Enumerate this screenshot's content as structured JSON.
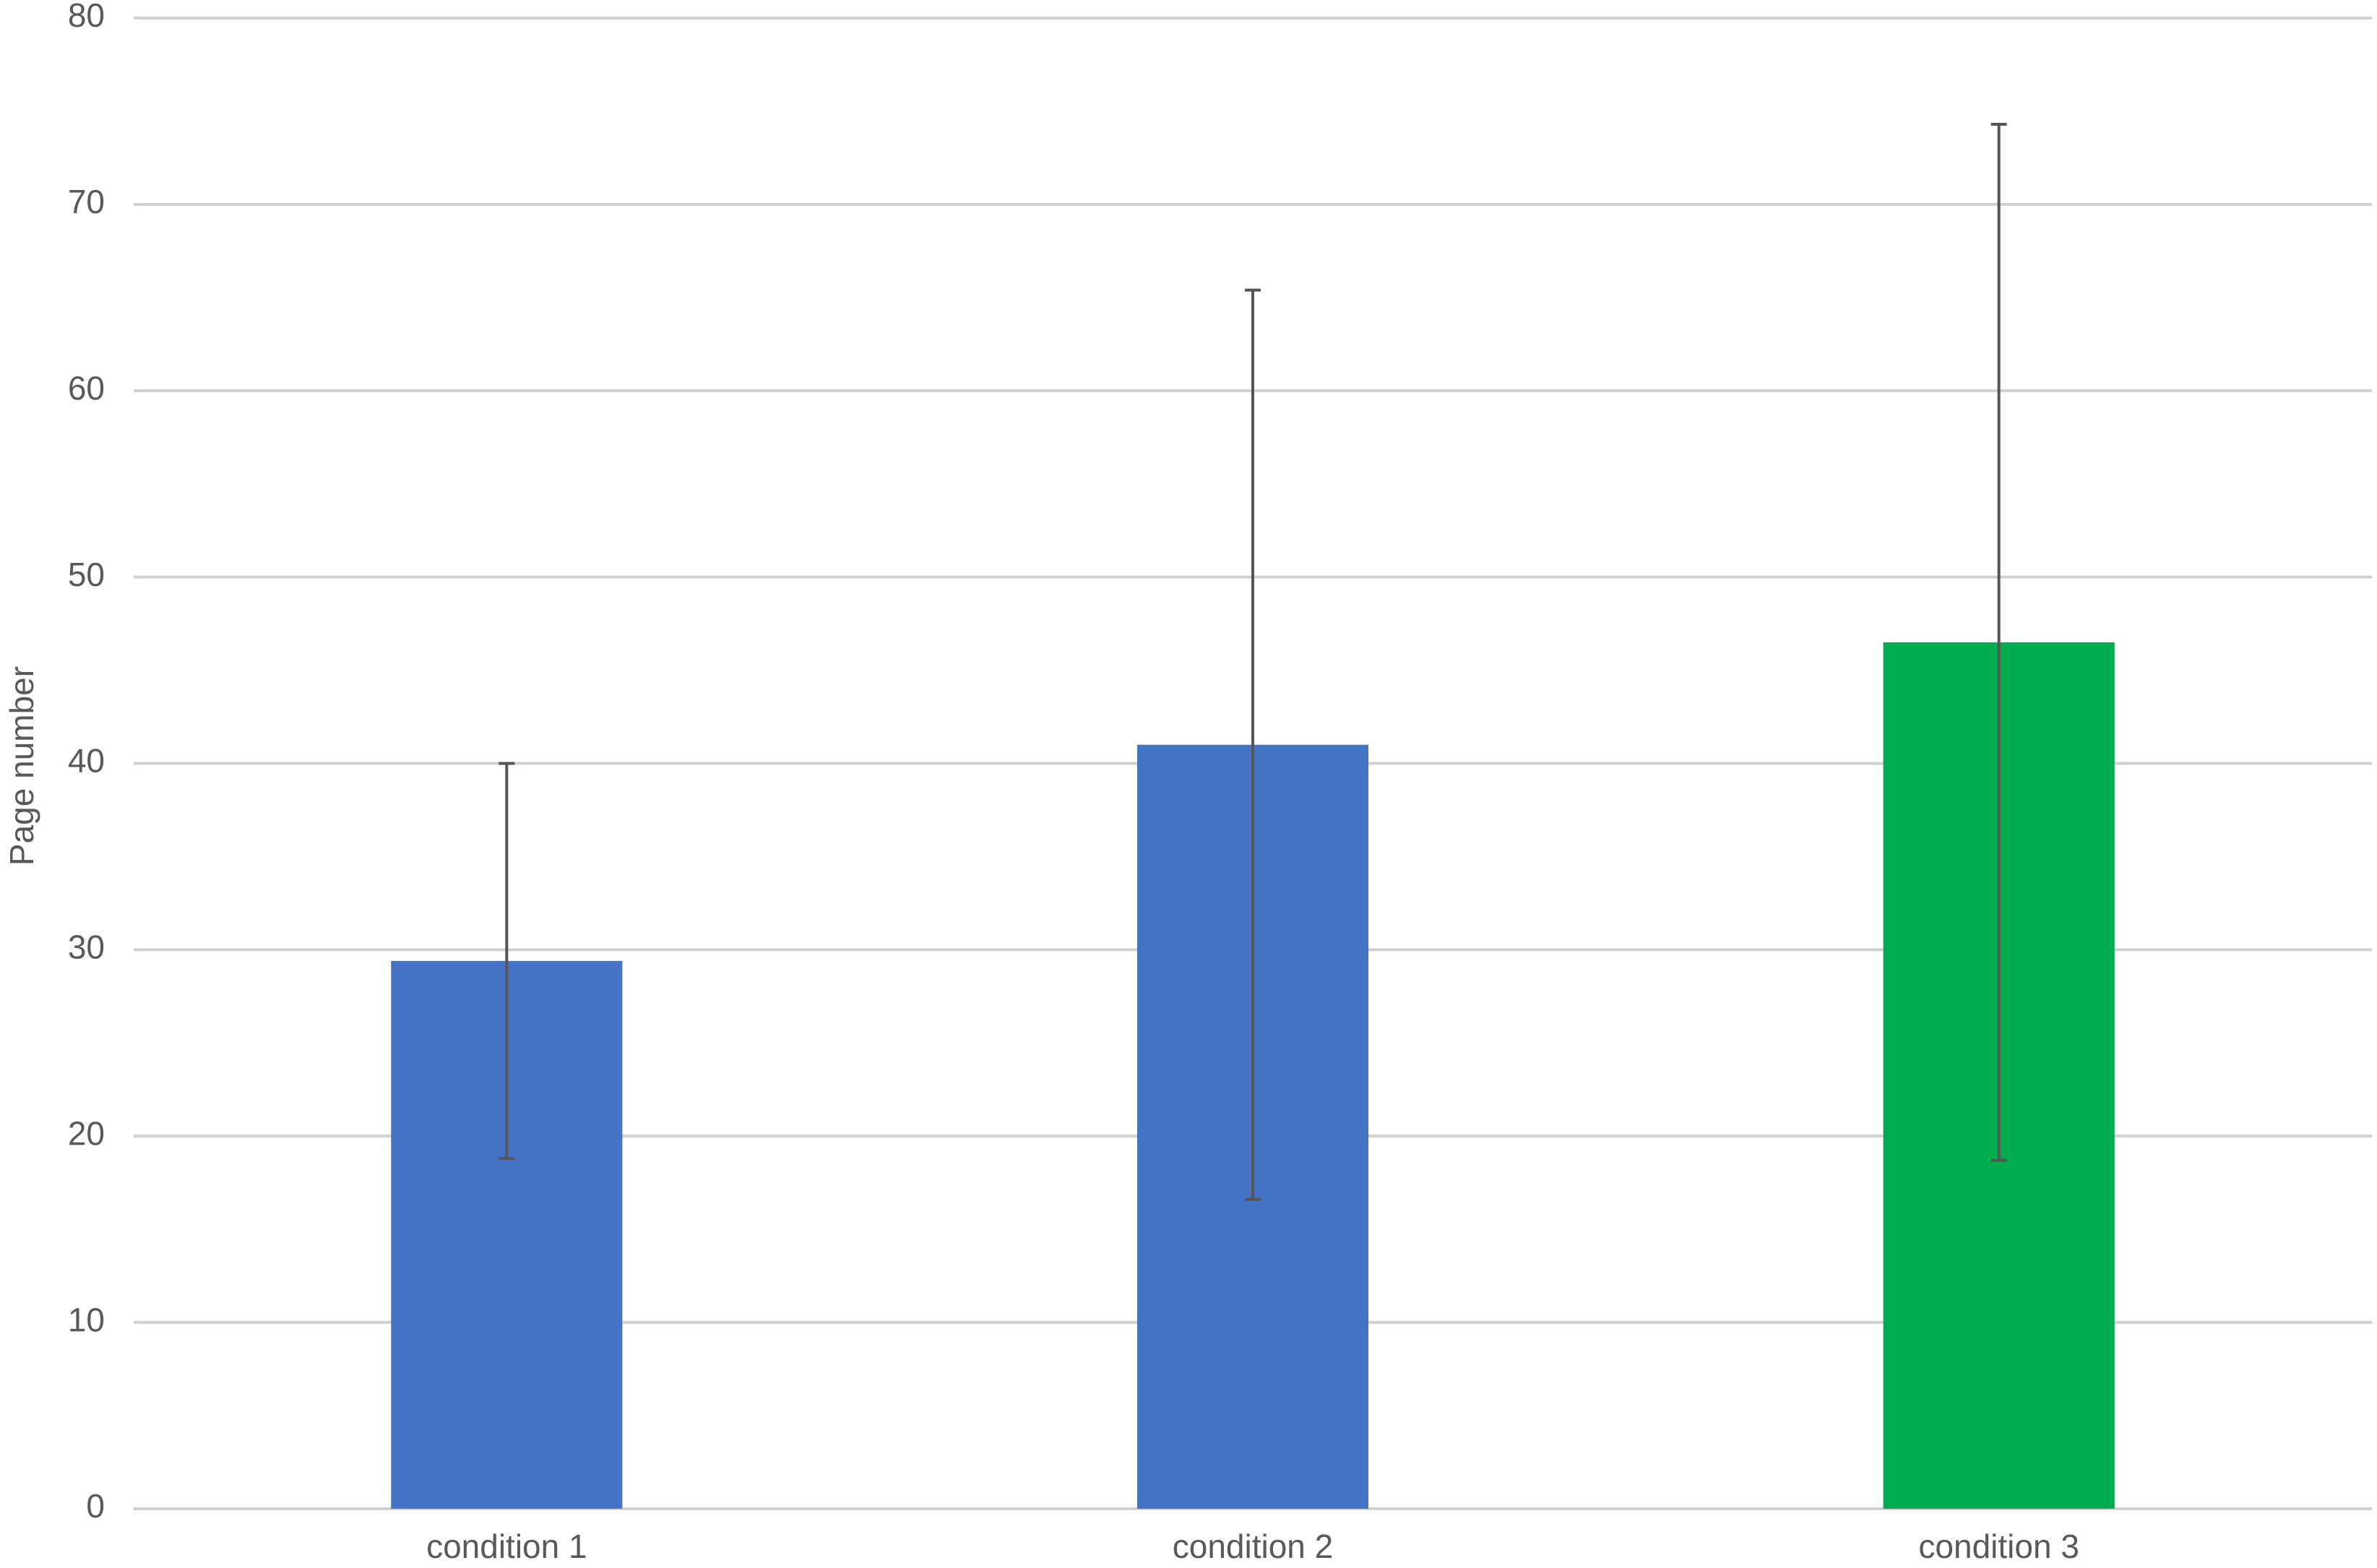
{
  "chart_data": {
    "type": "bar",
    "y_label": "Page number",
    "categories": [
      "condition 1",
      "condition 2",
      "condition 3"
    ],
    "values": [
      29.4,
      41,
      46.5
    ],
    "errors": [
      10.6,
      24.4,
      27.8
    ],
    "colors": [
      "#4472c4",
      "#4472c4",
      "#00ad4f"
    ],
    "error_color": "#555555",
    "ylim": [
      0,
      80
    ],
    "yticks": [
      0,
      10,
      20,
      30,
      40,
      50,
      60,
      70,
      80
    ],
    "grid": true
  }
}
